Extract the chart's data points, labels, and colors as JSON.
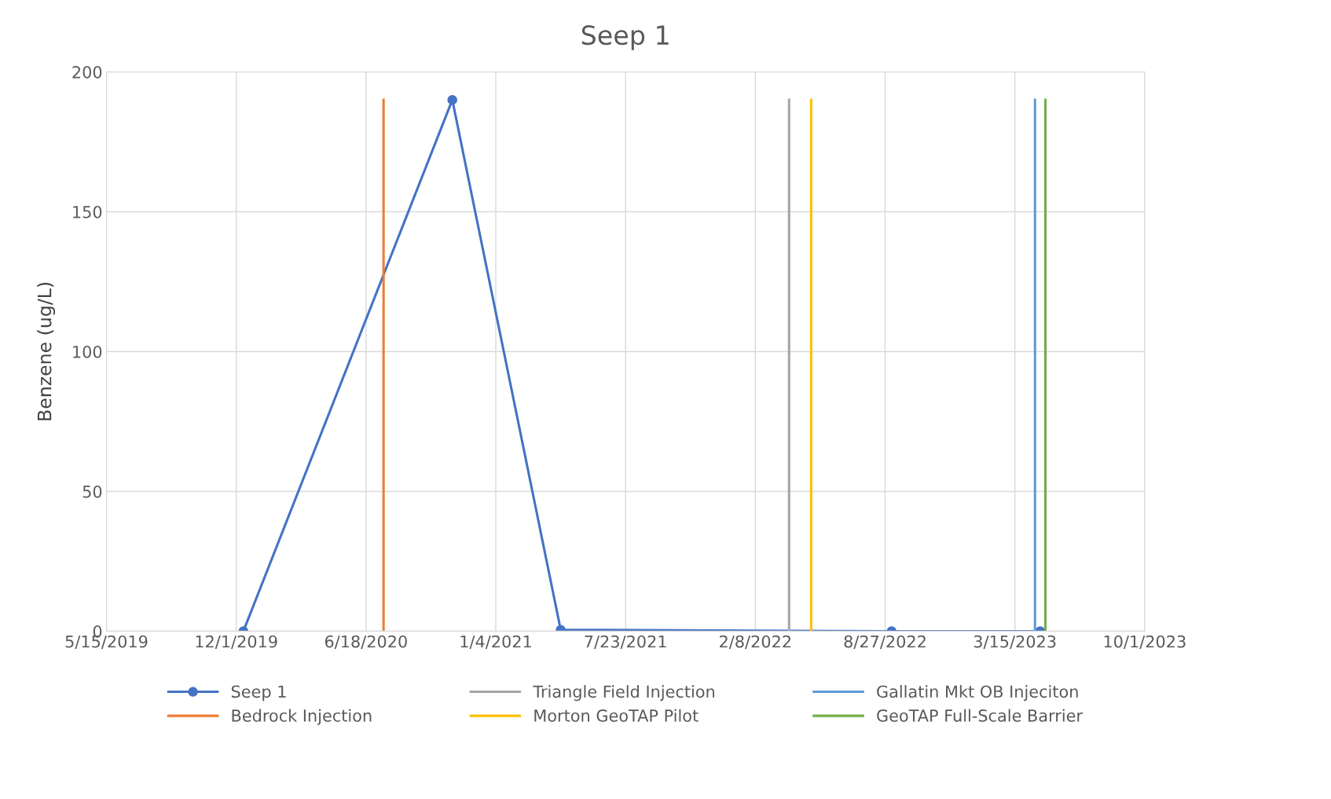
{
  "chart_data": {
    "type": "line",
    "title": "Seep 1",
    "ylabel": "Benzene (ug/L)",
    "series": [
      {
        "name": "Seep 1",
        "color": "#4472c4",
        "marker": "circle",
        "x": [
          "2019-12-12",
          "2020-10-29",
          "2021-04-14",
          "2022-09-06",
          "2023-04-23"
        ],
        "values": [
          0,
          190,
          0.5,
          0,
          0
        ]
      },
      {
        "name": "Bedrock Injection",
        "color": "#ed7d31",
        "marker": "none",
        "x": [
          "2020-07-15",
          "2020-07-15"
        ],
        "values": [
          0,
          190
        ]
      },
      {
        "name": "Triangle Field Injection",
        "color": "#a5a5a5",
        "marker": "none",
        "x": [
          "2022-04-01",
          "2022-04-01"
        ],
        "values": [
          0,
          190
        ]
      },
      {
        "name": "Morton GeoTAP Pilot",
        "color": "#ffc000",
        "marker": "none",
        "x": [
          "2022-05-05",
          "2022-05-05"
        ],
        "values": [
          0,
          190
        ]
      },
      {
        "name": "Gallatin Mkt OB Injeciton",
        "color": "#5b9bd5",
        "marker": "none",
        "x": [
          "2023-04-15",
          "2023-04-15"
        ],
        "values": [
          0,
          190
        ]
      },
      {
        "name": "GeoTAP Full-Scale Barrier",
        "color": "#70ad47",
        "marker": "none",
        "x": [
          "2023-05-01",
          "2023-05-01"
        ],
        "values": [
          0,
          190
        ]
      }
    ],
    "xlim": [
      "2019-05-15",
      "2023-10-01"
    ],
    "xticks": [
      {
        "value": "2019-05-15",
        "label": "5/15/2019"
      },
      {
        "value": "2019-12-01",
        "label": "12/1/2019"
      },
      {
        "value": "2020-06-18",
        "label": "6/18/2020"
      },
      {
        "value": "2021-01-04",
        "label": "1/4/2021"
      },
      {
        "value": "2021-07-23",
        "label": "7/23/2021"
      },
      {
        "value": "2022-02-08",
        "label": "2/8/2022"
      },
      {
        "value": "2022-08-27",
        "label": "8/27/2022"
      },
      {
        "value": "2023-03-15",
        "label": "3/15/2023"
      },
      {
        "value": "2023-10-01",
        "label": "10/1/2023"
      }
    ],
    "ylim": [
      0,
      200
    ],
    "yticks": [
      0,
      50,
      100,
      150,
      200
    ],
    "grid": true,
    "legend": "bottom",
    "line_style": "solid"
  }
}
